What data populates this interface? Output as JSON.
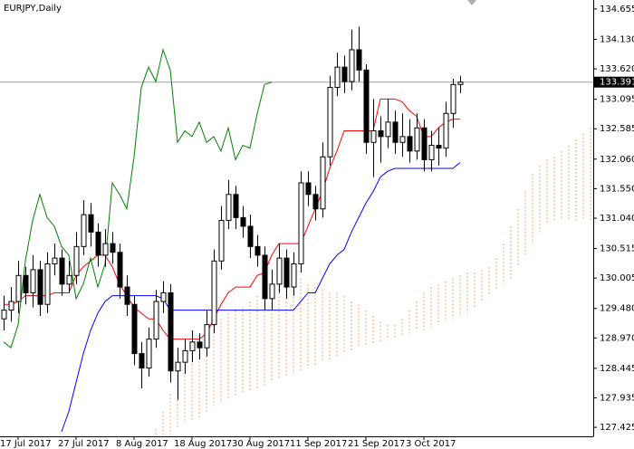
{
  "chart_data": {
    "type": "candlestick",
    "title": "EURJPY,Daily",
    "categories": [
      null,
      null,
      "17 Jul 2017",
      null,
      null,
      null,
      null,
      null,
      null,
      null,
      "27 Jul 2017",
      null,
      null,
      null,
      null,
      null,
      null,
      null,
      "8 Aug 2017",
      null,
      null,
      null,
      null,
      null,
      null,
      null,
      "18 Aug 2017",
      null,
      null,
      null,
      null,
      null,
      null,
      null,
      "30 Aug 2017",
      null,
      null,
      null,
      null,
      null,
      null,
      null,
      "11 Sep 2017",
      null,
      null,
      null,
      null,
      null,
      null,
      null,
      "21 Sep 2017",
      null,
      null,
      null,
      null,
      null,
      null,
      null,
      "3 Oct 2017",
      null,
      null,
      null,
      null,
      null,
      null,
      null,
      null,
      null,
      null,
      null,
      null,
      null,
      null,
      null,
      null,
      null,
      null,
      null,
      null,
      null,
      null,
      null
    ],
    "open": [
      129.3,
      129.45,
      129.6,
      130.05,
      129.75,
      130.15,
      129.55,
      130.25,
      130.35,
      129.9,
      130.05,
      130.55,
      131.1,
      130.8,
      130.4,
      130.6,
      130.45,
      129.85,
      129.55,
      128.7,
      128.45,
      128.95,
      129.6,
      129.75,
      128.4,
      128.55,
      128.75,
      128.9,
      128.8,
      129.2,
      130.3,
      131.0,
      131.45,
      131.05,
      130.9,
      130.55,
      130.4,
      129.65,
      129.9,
      130.35,
      129.85,
      130.25,
      131.65,
      131.45,
      131.2,
      132.1,
      133.3,
      133.65,
      133.4,
      133.95,
      133.6,
      132.35,
      132.55,
      132.45,
      132.7,
      132.35,
      132.45,
      132.2,
      132.6,
      132.05,
      132.3,
      132.25,
      132.85,
      133.35,
      null,
      null,
      null,
      null,
      null,
      null,
      null,
      null,
      null,
      null,
      null,
      null,
      null,
      null,
      null,
      null,
      null,
      null
    ],
    "high": [
      129.7,
      129.85,
      130.3,
      130.2,
      130.4,
      130.3,
      130.45,
      130.6,
      130.5,
      130.3,
      130.8,
      131.35,
      131.3,
      130.95,
      130.85,
      130.8,
      130.6,
      130.05,
      129.7,
      128.9,
      129.15,
      129.8,
      129.95,
      129.9,
      128.8,
      128.95,
      129.1,
      129.05,
      129.45,
      130.5,
      131.25,
      131.7,
      131.6,
      131.25,
      131.1,
      130.75,
      130.55,
      130.15,
      130.6,
      130.5,
      130.45,
      131.85,
      131.85,
      131.6,
      132.35,
      133.5,
      133.9,
      133.85,
      134.3,
      134.35,
      133.7,
      133.1,
      132.8,
      133.1,
      132.9,
      132.85,
      132.75,
      132.85,
      132.75,
      132.55,
      132.6,
      133.05,
      133.45,
      133.5,
      null,
      null,
      null,
      null,
      null,
      null,
      null,
      null,
      null,
      null,
      null,
      null,
      null,
      null,
      null,
      null,
      null,
      null
    ],
    "low": [
      129.1,
      129.25,
      129.4,
      129.55,
      129.5,
      129.35,
      129.4,
      130.05,
      129.7,
      129.75,
      129.9,
      130.4,
      130.55,
      130.2,
      130.2,
      130.25,
      129.65,
      129.35,
      128.5,
      128.1,
      128.3,
      128.8,
      129.4,
      128.2,
      127.9,
      128.35,
      128.55,
      128.6,
      128.65,
      129.05,
      130.15,
      130.85,
      130.85,
      130.7,
      130.35,
      130.2,
      129.45,
      129.45,
      129.75,
      129.65,
      129.7,
      130.1,
      131.25,
      131.0,
      131.05,
      131.95,
      133.15,
      133.2,
      133.25,
      133.4,
      132.15,
      131.75,
      132.0,
      132.25,
      132.15,
      132.1,
      132.0,
      132.05,
      131.85,
      131.85,
      131.95,
      132.1,
      132.6,
      133.2,
      null,
      null,
      null,
      null,
      null,
      null,
      null,
      null,
      null,
      null,
      null,
      null,
      null,
      null,
      null,
      null,
      null,
      null
    ],
    "close": [
      129.45,
      129.6,
      130.05,
      129.75,
      130.15,
      129.55,
      130.25,
      130.35,
      129.9,
      130.05,
      130.55,
      131.1,
      130.8,
      130.4,
      130.6,
      130.45,
      129.85,
      129.55,
      128.7,
      128.45,
      128.95,
      129.6,
      129.75,
      128.4,
      128.55,
      128.75,
      128.9,
      128.8,
      129.2,
      130.3,
      131.0,
      131.45,
      131.05,
      130.9,
      130.55,
      130.4,
      129.65,
      129.9,
      130.35,
      129.85,
      130.25,
      131.65,
      131.45,
      131.2,
      132.1,
      133.3,
      133.65,
      133.4,
      133.95,
      133.6,
      132.35,
      132.55,
      132.45,
      132.7,
      132.35,
      132.45,
      132.2,
      132.6,
      132.05,
      132.3,
      132.25,
      132.85,
      133.35,
      133.39,
      null,
      null,
      null,
      null,
      null,
      null,
      null,
      null,
      null,
      null,
      null,
      null,
      null,
      null,
      null,
      null,
      null,
      null
    ],
    "bull_color": "#ffffff",
    "bear_color": "#000000",
    "series": [
      {
        "color": "#ff0000",
        "values": [
          129.55,
          129.55,
          129.6,
          129.7,
          129.7,
          129.7,
          129.7,
          129.75,
          129.75,
          129.75,
          130.05,
          130.2,
          130.3,
          130.4,
          130.4,
          130.2,
          129.9,
          129.7,
          129.5,
          129.4,
          129.3,
          129.3,
          129.1,
          128.95,
          128.95,
          128.95,
          128.95,
          128.95,
          129.05,
          129.3,
          129.55,
          129.75,
          129.85,
          129.85,
          129.85,
          130.05,
          130.1,
          130.4,
          130.6,
          130.6,
          130.6,
          130.6,
          130.9,
          131.2,
          131.5,
          131.9,
          132.2,
          132.55,
          132.55,
          132.55,
          132.55,
          132.55,
          133.1,
          133.1,
          133.1,
          133.05,
          132.9,
          132.8,
          132.45,
          132.45,
          132.6,
          132.7,
          132.75,
          132.75,
          null,
          null,
          null,
          null,
          null,
          null,
          null,
          null,
          null,
          null,
          null,
          null,
          null,
          null,
          null,
          null,
          null,
          null
        ]
      },
      {
        "color": "#0000ff",
        "values": [
          null,
          null,
          null,
          null,
          null,
          null,
          null,
          null,
          127.35,
          127.7,
          128.2,
          128.7,
          129.1,
          129.4,
          129.6,
          129.7,
          129.7,
          129.7,
          129.7,
          129.7,
          129.7,
          129.7,
          129.65,
          129.45,
          129.45,
          129.45,
          129.45,
          129.45,
          129.45,
          129.45,
          129.45,
          129.45,
          129.45,
          129.45,
          129.45,
          129.45,
          129.45,
          129.45,
          129.45,
          129.45,
          129.45,
          129.6,
          129.75,
          129.75,
          130.0,
          130.25,
          130.4,
          130.5,
          130.8,
          131.05,
          131.3,
          131.5,
          131.75,
          131.85,
          131.9,
          131.9,
          131.9,
          131.9,
          131.9,
          131.9,
          131.9,
          131.9,
          131.9,
          132.0,
          null,
          null,
          null,
          null,
          null,
          null,
          null,
          null,
          null,
          null,
          null,
          null,
          null,
          null,
          null,
          null,
          null,
          null
        ]
      },
      {
        "color": "#008000",
        "values": [
          128.9,
          128.8,
          129.2,
          130.3,
          131.0,
          131.45,
          131.05,
          130.9,
          130.55,
          130.4,
          129.65,
          129.9,
          130.35,
          129.85,
          130.25,
          131.65,
          131.45,
          131.2,
          132.1,
          133.3,
          133.65,
          133.4,
          133.95,
          133.6,
          132.35,
          132.55,
          132.45,
          132.7,
          132.35,
          132.45,
          132.2,
          132.6,
          132.05,
          132.3,
          132.25,
          132.85,
          133.35,
          133.39,
          null,
          null,
          null,
          null,
          null,
          null,
          null,
          null,
          null,
          null,
          null,
          null,
          null,
          null,
          null,
          null,
          null,
          null,
          null,
          null,
          null,
          null,
          null,
          null,
          null,
          null,
          null,
          null,
          null,
          null,
          null,
          null,
          null,
          null,
          null,
          null,
          null,
          null,
          null,
          null,
          null,
          null,
          null,
          null
        ]
      }
    ],
    "cloud": {
      "color": "#f4a460",
      "span_a": [
        null,
        null,
        null,
        null,
        null,
        null,
        null,
        null,
        null,
        null,
        null,
        null,
        null,
        null,
        null,
        null,
        null,
        null,
        null,
        null,
        null,
        127.4,
        127.7,
        128.0,
        128.4,
        128.7,
        128.9,
        129.0,
        129.1,
        129.2,
        129.3,
        129.4,
        129.45,
        129.5,
        129.6,
        129.7,
        129.8,
        129.9,
        130.0,
        130.1,
        130.05,
        130.0,
        129.9,
        129.85,
        129.8,
        129.75,
        129.75,
        129.7,
        129.6,
        129.55,
        129.45,
        129.35,
        129.25,
        129.2,
        129.2,
        129.3,
        129.45,
        129.6,
        129.75,
        129.85,
        129.9,
        129.95,
        130.0,
        130.05,
        130.1,
        130.1,
        130.15,
        130.2,
        130.35,
        130.6,
        130.9,
        131.2,
        131.5,
        131.8,
        131.95,
        132.05,
        132.1,
        132.2,
        132.3,
        132.4,
        132.5,
        132.6
      ],
      "span_b": [
        null,
        null,
        null,
        null,
        null,
        null,
        null,
        null,
        null,
        null,
        null,
        null,
        null,
        null,
        null,
        null,
        null,
        null,
        null,
        null,
        null,
        127.3,
        127.3,
        127.3,
        127.4,
        127.5,
        127.55,
        127.6,
        127.7,
        127.8,
        127.85,
        127.9,
        127.95,
        128.0,
        128.05,
        128.1,
        128.15,
        128.2,
        128.25,
        128.3,
        128.35,
        128.4,
        128.45,
        128.5,
        128.55,
        128.6,
        128.65,
        128.7,
        128.75,
        128.8,
        128.85,
        128.85,
        128.9,
        128.95,
        128.95,
        129.0,
        129.05,
        129.1,
        129.1,
        129.15,
        129.2,
        129.25,
        129.3,
        129.35,
        129.4,
        129.5,
        129.6,
        129.7,
        129.8,
        129.9,
        130.0,
        130.2,
        130.4,
        130.6,
        130.8,
        130.95,
        131.0,
        131.0,
        131.0,
        131.0,
        131.0,
        131.0
      ]
    },
    "last_price": 133.391,
    "ylim": [
      127.27,
      134.81
    ],
    "yticks": [
      134.655,
      {
        "value": 134.13,
        "label": "134.130"
      },
      {
        "value": 133.62,
        "label": "133.620"
      },
      133.095,
      132.585,
      {
        "value": 132.06,
        "label": "132.060"
      },
      {
        "value": 131.55,
        "label": "131.550"
      },
      {
        "value": 131.04,
        "label": "131.040"
      },
      130.515,
      130.005,
      {
        "value": 129.48,
        "label": "129.480"
      },
      {
        "value": 128.97,
        "label": "128.970"
      },
      128.445,
      127.935,
      127.425
    ],
    "grid": false
  }
}
